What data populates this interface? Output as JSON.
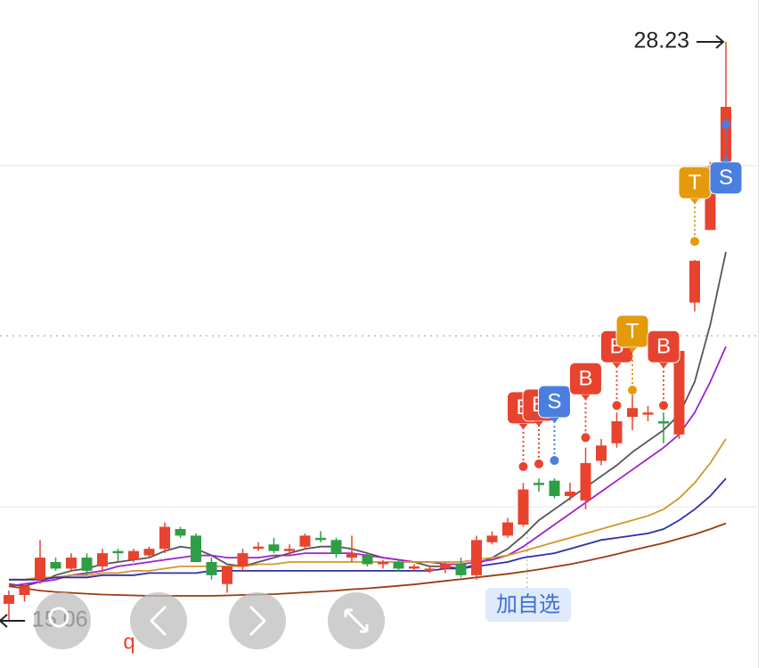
{
  "chart_data": {
    "type": "candlestick",
    "ylim": [
      13.99,
      29.18
    ],
    "up_color": "#e8432e",
    "down_color": "#2e9e45",
    "open": [
      15.45,
      15.65,
      16.0,
      16.4,
      16.25,
      16.5,
      16.3,
      16.65,
      16.45,
      16.55,
      16.7,
      17.15,
      17.0,
      16.4,
      15.9,
      16.3,
      16.7,
      16.8,
      16.65,
      16.75,
      16.95,
      16.9,
      16.5,
      16.55,
      16.35,
      16.4,
      16.25,
      16.2,
      16.25,
      16.35,
      16.1,
      16.85,
      17.0,
      17.25,
      18.2,
      18.25,
      17.9,
      17.8,
      18.7,
      19.1,
      19.7,
      19.75,
      19.6,
      19.3,
      22.3,
      23.95,
      25.5
    ],
    "high": [
      15.75,
      15.9,
      16.9,
      16.5,
      16.6,
      16.6,
      16.7,
      16.7,
      16.7,
      16.75,
      17.3,
      17.2,
      17.05,
      16.5,
      16.3,
      16.7,
      16.85,
      16.95,
      16.8,
      17.05,
      17.1,
      16.95,
      17.0,
      16.6,
      16.45,
      16.45,
      16.35,
      16.3,
      16.4,
      16.5,
      17.0,
      17.1,
      17.4,
      18.2,
      18.3,
      18.3,
      18.2,
      19.0,
      19.2,
      19.8,
      20.2,
      19.95,
      19.8,
      21.3,
      23.27,
      25.5,
      28.23
    ],
    "low": [
      15.06,
      15.5,
      15.9,
      16.2,
      16.2,
      16.1,
      16.2,
      16.4,
      16.4,
      16.5,
      16.6,
      16.95,
      16.4,
      16.0,
      15.7,
      16.2,
      16.65,
      16.6,
      16.55,
      16.7,
      16.85,
      16.5,
      16.4,
      16.3,
      16.25,
      16.2,
      16.2,
      16.15,
      16.15,
      16.05,
      16.0,
      16.8,
      16.95,
      17.2,
      18.0,
      17.85,
      17.8,
      17.6,
      18.6,
      19.0,
      19.4,
      19.6,
      19.1,
      19.2,
      22.1,
      23.95,
      25.4
    ],
    "close": [
      15.65,
      15.85,
      16.5,
      16.25,
      16.5,
      16.2,
      16.6,
      16.6,
      16.65,
      16.7,
      17.2,
      17.0,
      16.4,
      16.1,
      16.3,
      16.6,
      16.75,
      16.65,
      16.7,
      17.0,
      16.9,
      16.6,
      16.6,
      16.35,
      16.4,
      16.25,
      16.3,
      16.25,
      16.35,
      16.1,
      16.9,
      17.0,
      17.3,
      18.05,
      18.15,
      17.9,
      18.0,
      18.65,
      19.05,
      19.6,
      19.9,
      19.8,
      19.55,
      21.2,
      23.25,
      25.4,
      26.75
    ],
    "series": [
      {
        "color": "#555555",
        "values": [
          15.9,
          15.85,
          15.95,
          16.1,
          16.2,
          16.25,
          16.35,
          16.4,
          16.45,
          16.5,
          16.65,
          16.75,
          16.7,
          16.55,
          16.35,
          16.3,
          16.4,
          16.5,
          16.6,
          16.7,
          16.75,
          16.75,
          16.7,
          16.6,
          16.5,
          16.45,
          16.4,
          16.3,
          16.3,
          16.25,
          16.35,
          16.5,
          16.7,
          17.0,
          17.35,
          17.6,
          17.85,
          18.1,
          18.35,
          18.6,
          18.9,
          19.15,
          19.4,
          19.75,
          20.5,
          21.8,
          23.45
        ]
      },
      {
        "color": "#a020d0",
        "values": [
          15.85,
          15.9,
          15.95,
          16.0,
          16.1,
          16.15,
          16.2,
          16.3,
          16.35,
          16.4,
          16.45,
          16.5,
          16.55,
          16.55,
          16.5,
          16.5,
          16.5,
          16.55,
          16.55,
          16.6,
          16.6,
          16.6,
          16.6,
          16.55,
          16.5,
          16.45,
          16.4,
          16.4,
          16.35,
          16.35,
          16.4,
          16.45,
          16.55,
          16.75,
          17.0,
          17.25,
          17.5,
          17.75,
          18.0,
          18.25,
          18.5,
          18.75,
          19.0,
          19.3,
          19.8,
          20.5,
          21.3
        ]
      },
      {
        "color": "#d4962a",
        "values": [
          16.0,
          16.0,
          16.05,
          16.05,
          16.1,
          16.1,
          16.15,
          16.15,
          16.2,
          16.2,
          16.25,
          16.3,
          16.3,
          16.3,
          16.3,
          16.3,
          16.35,
          16.35,
          16.4,
          16.4,
          16.4,
          16.4,
          16.4,
          16.4,
          16.4,
          16.4,
          16.4,
          16.4,
          16.4,
          16.4,
          16.45,
          16.5,
          16.55,
          16.65,
          16.75,
          16.85,
          16.95,
          17.05,
          17.15,
          17.25,
          17.35,
          17.45,
          17.6,
          17.85,
          18.2,
          18.65,
          19.2
        ]
      },
      {
        "color": "#2f2fa8",
        "values": [
          16.0,
          16.0,
          16.0,
          16.05,
          16.05,
          16.05,
          16.1,
          16.1,
          16.1,
          16.15,
          16.15,
          16.15,
          16.15,
          16.2,
          16.2,
          16.2,
          16.2,
          16.2,
          16.2,
          16.2,
          16.2,
          16.2,
          16.2,
          16.2,
          16.2,
          16.2,
          16.2,
          16.2,
          16.25,
          16.25,
          16.3,
          16.35,
          16.4,
          16.5,
          16.55,
          16.6,
          16.7,
          16.8,
          16.9,
          16.95,
          17.0,
          17.05,
          17.15,
          17.35,
          17.6,
          17.9,
          18.3
        ]
      },
      {
        "color": "#9c3b10",
        "values": [
          15.85,
          15.8,
          15.75,
          15.72,
          15.7,
          15.68,
          15.66,
          15.65,
          15.64,
          15.63,
          15.63,
          15.63,
          15.63,
          15.63,
          15.64,
          15.65,
          15.66,
          15.67,
          15.69,
          15.71,
          15.73,
          15.75,
          15.78,
          15.8,
          15.83,
          15.86,
          15.89,
          15.93,
          15.97,
          16.01,
          16.05,
          16.09,
          16.13,
          16.18,
          16.23,
          16.29,
          16.35,
          16.42,
          16.5,
          16.58,
          16.67,
          16.75,
          16.83,
          16.93,
          17.03,
          17.15,
          17.28
        ]
      }
    ],
    "signals": [
      {
        "label": "B",
        "index": 33,
        "price": 18.57,
        "color": "#e8432e"
      },
      {
        "label": "B",
        "index": 34,
        "price": 18.63,
        "color": "#e8432e"
      },
      {
        "label": "S",
        "index": 35,
        "price": 18.71,
        "color": "#4a7fe0"
      },
      {
        "label": "B",
        "index": 37,
        "price": 19.23,
        "color": "#e8432e"
      },
      {
        "label": "B",
        "index": 39,
        "price": 19.96,
        "color": "#e8432e"
      },
      {
        "label": "T",
        "index": 40,
        "price": 20.31,
        "color": "#e59a0c"
      },
      {
        "label": "B",
        "index": 42,
        "price": 19.96,
        "color": "#e8432e"
      },
      {
        "label": "T",
        "index": 44,
        "price": 23.69,
        "color": "#e59a0c"
      },
      {
        "label": "S",
        "index": 46,
        "price": 26.35,
        "color": "#4a7fe0"
      }
    ]
  },
  "ui": {
    "add_watchlist": "加自选",
    "cut_text": "q"
  }
}
